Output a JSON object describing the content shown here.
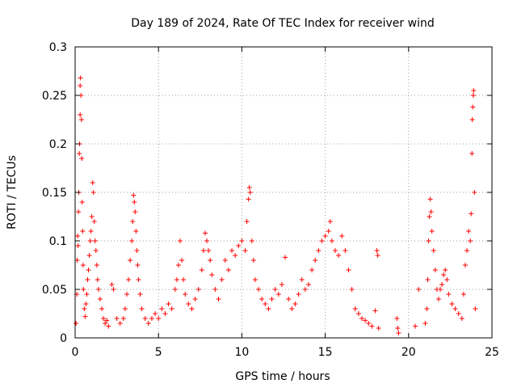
{
  "chart_data": {
    "type": "scatter",
    "title": "Day 189 of 2024, Rate Of TEC Index for receiver wind",
    "xlabel": "GPS time / hours",
    "ylabel": "ROTI / TECUs",
    "xlim": [
      0,
      25
    ],
    "ylim": [
      0,
      0.3
    ],
    "xticks": [
      "0",
      "5",
      "10",
      "15",
      "20",
      "25"
    ],
    "yticks": [
      "0",
      "0.05",
      "0.1",
      "0.15",
      "0.2",
      "0.25",
      "0.3"
    ],
    "grid": true,
    "marker": "+",
    "color": "#ff0000",
    "series": [
      {
        "points": [
          [
            0.05,
            0.015
          ],
          [
            0.1,
            0.045
          ],
          [
            0.12,
            0.08
          ],
          [
            0.15,
            0.105
          ],
          [
            0.18,
            0.095
          ],
          [
            0.2,
            0.13
          ],
          [
            0.22,
            0.15
          ],
          [
            0.25,
            0.19
          ],
          [
            0.27,
            0.2
          ],
          [
            0.3,
            0.23
          ],
          [
            0.3,
            0.26
          ],
          [
            0.32,
            0.268
          ],
          [
            0.35,
            0.25
          ],
          [
            0.38,
            0.225
          ],
          [
            0.4,
            0.185
          ],
          [
            0.42,
            0.14
          ],
          [
            0.45,
            0.11
          ],
          [
            0.48,
            0.075
          ],
          [
            0.5,
            0.05
          ],
          [
            0.55,
            0.03
          ],
          [
            0.6,
            0.022
          ],
          [
            0.65,
            0.035
          ],
          [
            0.7,
            0.045
          ],
          [
            0.75,
            0.06
          ],
          [
            0.8,
            0.07
          ],
          [
            0.85,
            0.085
          ],
          [
            0.9,
            0.1
          ],
          [
            0.95,
            0.11
          ],
          [
            1.0,
            0.125
          ],
          [
            1.05,
            0.16
          ],
          [
            1.1,
            0.15
          ],
          [
            1.15,
            0.12
          ],
          [
            1.2,
            0.1
          ],
          [
            1.25,
            0.09
          ],
          [
            1.3,
            0.075
          ],
          [
            1.35,
            0.06
          ],
          [
            1.4,
            0.05
          ],
          [
            1.5,
            0.04
          ],
          [
            1.6,
            0.03
          ],
          [
            1.7,
            0.02
          ],
          [
            1.8,
            0.015
          ],
          [
            1.9,
            0.018
          ],
          [
            2.0,
            0.012
          ],
          [
            2.2,
            0.055
          ],
          [
            2.3,
            0.05
          ],
          [
            2.5,
            0.02
          ],
          [
            2.7,
            0.015
          ],
          [
            2.9,
            0.02
          ],
          [
            3.0,
            0.03
          ],
          [
            3.1,
            0.045
          ],
          [
            3.2,
            0.06
          ],
          [
            3.3,
            0.08
          ],
          [
            3.4,
            0.1
          ],
          [
            3.45,
            0.12
          ],
          [
            3.5,
            0.147
          ],
          [
            3.55,
            0.14
          ],
          [
            3.6,
            0.13
          ],
          [
            3.65,
            0.11
          ],
          [
            3.7,
            0.09
          ],
          [
            3.75,
            0.075
          ],
          [
            3.8,
            0.06
          ],
          [
            3.9,
            0.045
          ],
          [
            4.0,
            0.03
          ],
          [
            4.2,
            0.02
          ],
          [
            4.4,
            0.015
          ],
          [
            4.6,
            0.02
          ],
          [
            4.8,
            0.025
          ],
          [
            5.0,
            0.02
          ],
          [
            5.2,
            0.03
          ],
          [
            5.4,
            0.025
          ],
          [
            5.6,
            0.035
          ],
          [
            5.8,
            0.03
          ],
          [
            6.0,
            0.05
          ],
          [
            6.1,
            0.06
          ],
          [
            6.2,
            0.075
          ],
          [
            6.3,
            0.1
          ],
          [
            6.4,
            0.08
          ],
          [
            6.5,
            0.06
          ],
          [
            6.6,
            0.045
          ],
          [
            6.8,
            0.035
          ],
          [
            7.0,
            0.03
          ],
          [
            7.2,
            0.04
          ],
          [
            7.4,
            0.05
          ],
          [
            7.6,
            0.07
          ],
          [
            7.7,
            0.09
          ],
          [
            7.8,
            0.108
          ],
          [
            7.9,
            0.1
          ],
          [
            8.0,
            0.09
          ],
          [
            8.1,
            0.08
          ],
          [
            8.2,
            0.065
          ],
          [
            8.4,
            0.05
          ],
          [
            8.6,
            0.04
          ],
          [
            8.8,
            0.06
          ],
          [
            9.0,
            0.08
          ],
          [
            9.2,
            0.07
          ],
          [
            9.4,
            0.09
          ],
          [
            9.6,
            0.085
          ],
          [
            9.8,
            0.095
          ],
          [
            10.0,
            0.1
          ],
          [
            10.2,
            0.09
          ],
          [
            10.3,
            0.12
          ],
          [
            10.4,
            0.143
          ],
          [
            10.45,
            0.155
          ],
          [
            10.5,
            0.15
          ],
          [
            10.6,
            0.1
          ],
          [
            10.7,
            0.08
          ],
          [
            10.8,
            0.06
          ],
          [
            11.0,
            0.05
          ],
          [
            11.2,
            0.04
          ],
          [
            11.4,
            0.035
          ],
          [
            11.6,
            0.03
          ],
          [
            11.8,
            0.04
          ],
          [
            12.0,
            0.05
          ],
          [
            12.2,
            0.045
          ],
          [
            12.4,
            0.055
          ],
          [
            12.6,
            0.083
          ],
          [
            12.8,
            0.04
          ],
          [
            13.0,
            0.03
          ],
          [
            13.2,
            0.035
          ],
          [
            13.4,
            0.045
          ],
          [
            13.6,
            0.06
          ],
          [
            13.8,
            0.05
          ],
          [
            14.0,
            0.055
          ],
          [
            14.2,
            0.07
          ],
          [
            14.4,
            0.08
          ],
          [
            14.6,
            0.09
          ],
          [
            14.8,
            0.1
          ],
          [
            15.0,
            0.105
          ],
          [
            15.2,
            0.11
          ],
          [
            15.3,
            0.12
          ],
          [
            15.4,
            0.1
          ],
          [
            15.6,
            0.09
          ],
          [
            15.8,
            0.085
          ],
          [
            16.0,
            0.105
          ],
          [
            16.2,
            0.09
          ],
          [
            16.4,
            0.07
          ],
          [
            16.6,
            0.05
          ],
          [
            16.8,
            0.03
          ],
          [
            17.0,
            0.025
          ],
          [
            17.2,
            0.02
          ],
          [
            17.4,
            0.018
          ],
          [
            17.6,
            0.015
          ],
          [
            17.8,
            0.012
          ],
          [
            18.0,
            0.028
          ],
          [
            18.1,
            0.09
          ],
          [
            18.15,
            0.085
          ],
          [
            18.2,
            0.01
          ],
          [
            19.3,
            0.02
          ],
          [
            19.35,
            0.01
          ],
          [
            19.4,
            0.005
          ],
          [
            20.4,
            0.012
          ],
          [
            20.6,
            0.05
          ],
          [
            21.0,
            0.015
          ],
          [
            21.1,
            0.03
          ],
          [
            21.15,
            0.06
          ],
          [
            21.2,
            0.1
          ],
          [
            21.25,
            0.125
          ],
          [
            21.3,
            0.143
          ],
          [
            21.35,
            0.13
          ],
          [
            21.4,
            0.11
          ],
          [
            21.5,
            0.09
          ],
          [
            21.6,
            0.07
          ],
          [
            21.7,
            0.05
          ],
          [
            21.8,
            0.04
          ],
          [
            21.9,
            0.05
          ],
          [
            22.0,
            0.055
          ],
          [
            22.1,
            0.065
          ],
          [
            22.2,
            0.07
          ],
          [
            22.3,
            0.06
          ],
          [
            22.4,
            0.045
          ],
          [
            22.6,
            0.035
          ],
          [
            22.8,
            0.03
          ],
          [
            23.0,
            0.025
          ],
          [
            23.2,
            0.02
          ],
          [
            23.3,
            0.045
          ],
          [
            23.4,
            0.075
          ],
          [
            23.5,
            0.09
          ],
          [
            23.6,
            0.11
          ],
          [
            23.7,
            0.1
          ],
          [
            23.75,
            0.128
          ],
          [
            23.8,
            0.19
          ],
          [
            23.82,
            0.225
          ],
          [
            23.85,
            0.238
          ],
          [
            23.88,
            0.25
          ],
          [
            23.9,
            0.255
          ],
          [
            23.95,
            0.15
          ],
          [
            24.0,
            0.03
          ]
        ]
      }
    ]
  }
}
